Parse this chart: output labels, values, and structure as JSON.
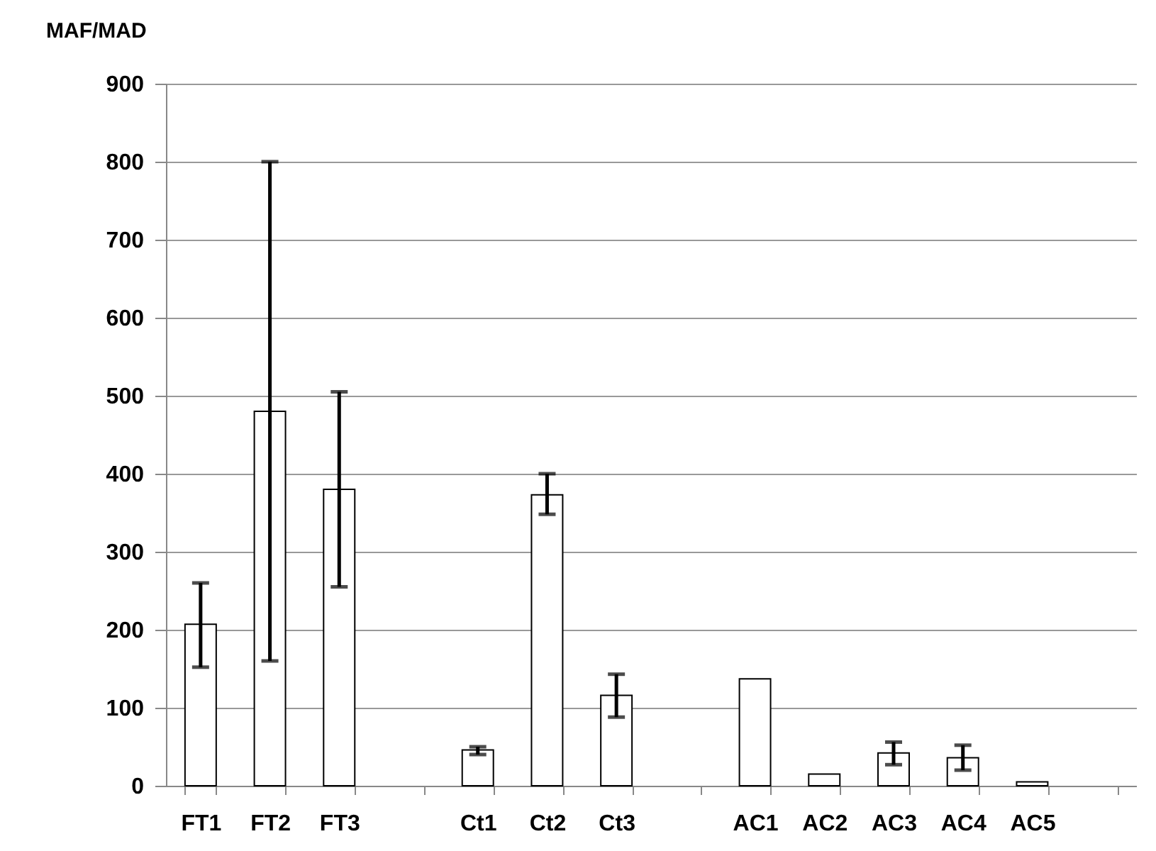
{
  "chart_data": {
    "type": "bar",
    "ylabel": "MAF/MAD",
    "categories": [
      "FT1",
      "FT2",
      "FT3",
      null,
      "Ct1",
      "Ct2",
      "Ct3",
      null,
      "AC1",
      "AC2",
      "AC3",
      "AC4",
      "AC5",
      null
    ],
    "values": [
      207,
      480,
      380,
      null,
      46,
      373,
      116,
      null,
      137,
      15,
      42,
      36,
      5,
      null
    ],
    "errors": [
      [
        152,
        260
      ],
      [
        160,
        800
      ],
      [
        255,
        505
      ],
      null,
      [
        40,
        50
      ],
      [
        348,
        400
      ],
      [
        88,
        143
      ],
      null,
      null,
      null,
      [
        27,
        56
      ],
      [
        20,
        52
      ],
      null,
      null
    ],
    "color": "#ffffff",
    "ylim": [
      0,
      900
    ],
    "yticks": [
      0,
      100,
      200,
      300,
      400,
      500,
      600,
      700,
      800,
      900
    ],
    "grid": "y"
  }
}
